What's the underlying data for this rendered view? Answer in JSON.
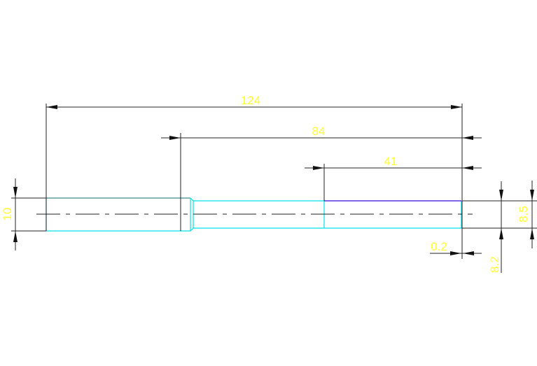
{
  "drawing": {
    "dimensions": {
      "overall_length": "124",
      "length_84": "84",
      "length_41": "41",
      "diameter_10": "10",
      "diameter_8_5": "8.5",
      "diameter_8_2": "8.2",
      "offset_0_2": "0.2"
    },
    "colors": {
      "dimension_text": "#ffff33",
      "part_outline": "#00e0e8",
      "highlight_edge": "#5533dd",
      "dimension_lines": "#222222"
    }
  }
}
